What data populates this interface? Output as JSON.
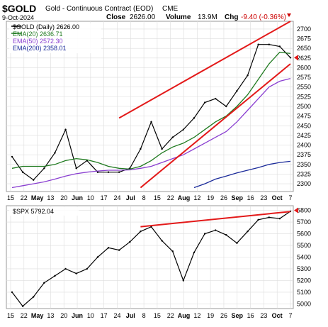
{
  "header": {
    "symbol": "$GOLD",
    "name": "Gold - Continuous Contract (EOD)",
    "exchange": "CME",
    "date": "9-Oct-2024",
    "close_label": "Close",
    "close_value": "2626.00",
    "volume_label": "Volume",
    "volume_value": "13.9M",
    "chg_label": "Chg",
    "chg_value": "-9.40 (-0.36%)",
    "down_color": "#cc0000"
  },
  "legend_top": [
    {
      "text": "$GOLD (Daily) 2626.00",
      "color": "#000000"
    },
    {
      "text": "EMA(20) 2636.71",
      "color": "#1f7a1f"
    },
    {
      "text": "EMA(50) 2572.30",
      "color": "#8a3fd1"
    },
    {
      "text": "EMA(200) 2358.01",
      "color": "#1a2a9a"
    }
  ],
  "legend_bottom": [
    {
      "text": "$SPX 5792.04",
      "color": "#000000"
    }
  ],
  "colors": {
    "price": "#000000",
    "ema20": "#1f7a1f",
    "ema50": "#8a3fd1",
    "ema200": "#1a2a9a",
    "channel": "#e31919",
    "grid": "#dddddd",
    "last_marker": "#e31919"
  },
  "x_axis": {
    "tick_labels": [
      "15",
      "22",
      "May",
      "13",
      "20",
      "Jun",
      "10",
      "17",
      "24",
      "Jul",
      "8",
      "15",
      "22",
      "Aug",
      "12",
      "19",
      "26",
      "Sep",
      "16",
      "23",
      "Oct",
      "7"
    ],
    "month_labels": [
      "May",
      "Jun",
      "Jul",
      "Aug",
      "Sep",
      "Oct"
    ]
  },
  "chart_data": [
    {
      "type": "line",
      "title": "$GOLD (Daily)",
      "y_ticks": [
        2300,
        2325,
        2350,
        2375,
        2400,
        2425,
        2450,
        2475,
        2500,
        2525,
        2550,
        2575,
        2600,
        2625,
        2650,
        2675,
        2700
      ],
      "ylim": [
        2280,
        2720
      ],
      "last_value_marker": 2626,
      "x_dates": [
        "Apr 15",
        "Apr 22",
        "Apr 29",
        "May 6",
        "May 13",
        "May 20",
        "May 27",
        "Jun 3",
        "Jun 10",
        "Jun 17",
        "Jun 24",
        "Jul 1",
        "Jul 8",
        "Jul 15",
        "Jul 22",
        "Jul 29",
        "Aug 5",
        "Aug 12",
        "Aug 19",
        "Aug 26",
        "Sep 2",
        "Sep 9",
        "Sep 16",
        "Sep 23",
        "Sep 30",
        "Oct 7",
        "Oct 9"
      ],
      "series": [
        {
          "name": "$GOLD (Daily)",
          "values": [
            2370,
            2330,
            2310,
            2340,
            2380,
            2440,
            2340,
            2360,
            2330,
            2330,
            2330,
            2340,
            2390,
            2460,
            2390,
            2420,
            2440,
            2470,
            2510,
            2520,
            2500,
            2540,
            2580,
            2660,
            2660,
            2655,
            2626
          ]
        },
        {
          "name": "EMA(20)",
          "values": [
            2340,
            2345,
            2345,
            2345,
            2350,
            2360,
            2365,
            2362,
            2355,
            2345,
            2340,
            2338,
            2345,
            2360,
            2380,
            2395,
            2405,
            2420,
            2440,
            2460,
            2475,
            2500,
            2530,
            2570,
            2610,
            2640,
            2636.71
          ]
        },
        {
          "name": "EMA(50)",
          "values": [
            2290,
            2295,
            2300,
            2305,
            2312,
            2320,
            2326,
            2330,
            2333,
            2335,
            2335,
            2336,
            2340,
            2345,
            2355,
            2365,
            2375,
            2390,
            2405,
            2420,
            2435,
            2460,
            2490,
            2520,
            2550,
            2565,
            2572.3
          ]
        },
        {
          "name": "EMA(200)",
          "values": [
            null,
            null,
            null,
            null,
            null,
            null,
            null,
            null,
            null,
            null,
            null,
            null,
            null,
            null,
            null,
            null,
            null,
            2290,
            2300,
            2312,
            2320,
            2328,
            2335,
            2342,
            2350,
            2355,
            2358.01
          ]
        }
      ],
      "channel_lines": [
        {
          "x": [
            "Jun 24",
            "Oct 9"
          ],
          "y": [
            2470,
            2720
          ]
        },
        {
          "x": [
            "Jul 8",
            "Oct 9"
          ],
          "y": [
            2290,
            2610
          ]
        }
      ]
    },
    {
      "type": "line",
      "title": "$SPX",
      "y_ticks": [
        5000,
        5100,
        5200,
        5300,
        5400,
        5500,
        5600,
        5700,
        5800
      ],
      "ylim": [
        4960,
        5840
      ],
      "last_value_marker": 5800,
      "x_dates": [
        "Apr 15",
        "Apr 22",
        "Apr 29",
        "May 6",
        "May 13",
        "May 20",
        "May 27",
        "Jun 3",
        "Jun 10",
        "Jun 17",
        "Jun 24",
        "Jul 1",
        "Jul 8",
        "Jul 15",
        "Jul 22",
        "Jul 29",
        "Aug 5",
        "Aug 12",
        "Aug 19",
        "Aug 26",
        "Sep 2",
        "Sep 9",
        "Sep 16",
        "Sep 23",
        "Sep 30",
        "Oct 7",
        "Oct 9"
      ],
      "series": [
        {
          "name": "$SPX",
          "values": [
            5100,
            4980,
            5060,
            5180,
            5240,
            5300,
            5260,
            5300,
            5400,
            5480,
            5460,
            5530,
            5620,
            5660,
            5540,
            5450,
            5200,
            5440,
            5600,
            5630,
            5590,
            5520,
            5620,
            5720,
            5740,
            5730,
            5792
          ]
        }
      ],
      "channel_lines": [
        {
          "x": [
            "Jul 8",
            "Oct 9"
          ],
          "y": [
            5660,
            5790
          ]
        }
      ]
    }
  ]
}
